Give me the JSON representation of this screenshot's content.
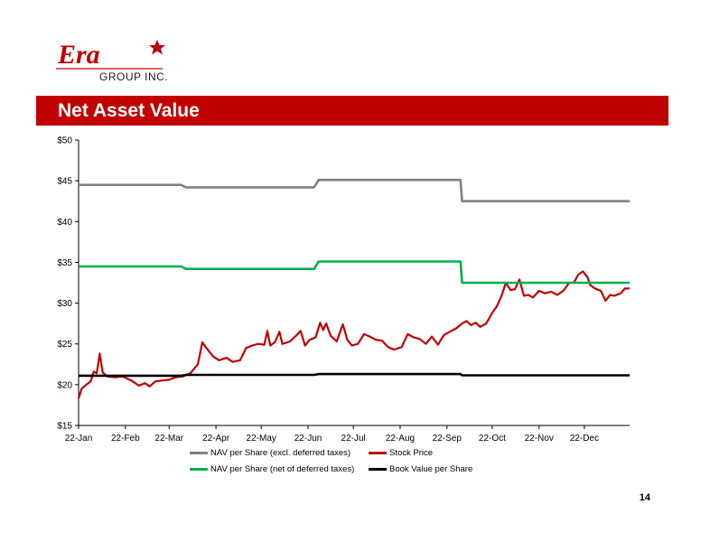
{
  "header": {
    "logo_text": "Era",
    "logo_sub": "GROUP INC.",
    "title": "Net Asset Value"
  },
  "colors": {
    "brand_red": "#c00000",
    "nav_excl": "#808080",
    "nav_net": "#00b050",
    "stock": "#c00000",
    "book": "#000000"
  },
  "page_number": "14",
  "chart_data": {
    "type": "line",
    "title": "",
    "xlabel": "",
    "ylabel": "",
    "ylim": [
      15,
      50
    ],
    "yticks": [
      15,
      20,
      25,
      30,
      35,
      40,
      45,
      50
    ],
    "ytick_labels": [
      "$15",
      "$20",
      "$25",
      "$30",
      "$35",
      "$40",
      "$45",
      "$50"
    ],
    "x_range": [
      "2012-01-01",
      "2012-12-31"
    ],
    "xticks": [
      {
        "date": "2012-01-01",
        "label": "22-Jan"
      },
      {
        "date": "2012-02-01",
        "label": "22-Feb"
      },
      {
        "date": "2012-03-01",
        "label": "22-Mar"
      },
      {
        "date": "2012-04-01",
        "label": "22-Apr"
      },
      {
        "date": "2012-05-01",
        "label": "22-May"
      },
      {
        "date": "2012-06-01",
        "label": "22-Jun"
      },
      {
        "date": "2012-07-01",
        "label": "22-Jul"
      },
      {
        "date": "2012-08-01",
        "label": "22-Aug"
      },
      {
        "date": "2012-09-01",
        "label": "22-Sep"
      },
      {
        "date": "2012-10-01",
        "label": "22-Oct"
      },
      {
        "date": "2012-11-01",
        "label": "22-Nov"
      },
      {
        "date": "2012-12-01",
        "label": "22-Dec"
      }
    ],
    "grid": false,
    "legend_position": "bottom",
    "series": [
      {
        "name": "NAV per Share (excl. deferred taxes)",
        "color": "#808080",
        "step": true,
        "points": [
          [
            "2012-01-01",
            44.5
          ],
          [
            "2012-03-09",
            44.5
          ],
          [
            "2012-03-12",
            44.2
          ],
          [
            "2012-06-05",
            44.2
          ],
          [
            "2012-06-08",
            45.1
          ],
          [
            "2012-09-10",
            45.1
          ],
          [
            "2012-09-11",
            42.5
          ],
          [
            "2012-12-31",
            42.5
          ]
        ]
      },
      {
        "name": "Stock Price",
        "color": "#c00000",
        "step": false,
        "points": [
          [
            "2012-01-01",
            18.3
          ],
          [
            "2012-01-03",
            19.5
          ],
          [
            "2012-01-06",
            20.0
          ],
          [
            "2012-01-09",
            20.4
          ],
          [
            "2012-01-11",
            21.6
          ],
          [
            "2012-01-13",
            21.4
          ],
          [
            "2012-01-15",
            23.8
          ],
          [
            "2012-01-17",
            21.5
          ],
          [
            "2012-01-20",
            21.0
          ],
          [
            "2012-01-25",
            20.9
          ],
          [
            "2012-01-30",
            21.0
          ],
          [
            "2012-02-05",
            20.5
          ],
          [
            "2012-02-10",
            19.9
          ],
          [
            "2012-02-14",
            20.2
          ],
          [
            "2012-02-17",
            19.8
          ],
          [
            "2012-02-21",
            20.4
          ],
          [
            "2012-02-25",
            20.5
          ],
          [
            "2012-03-01",
            20.6
          ],
          [
            "2012-03-05",
            20.9
          ],
          [
            "2012-03-10",
            21.0
          ],
          [
            "2012-03-15",
            21.4
          ],
          [
            "2012-03-20",
            22.5
          ],
          [
            "2012-03-23",
            25.2
          ],
          [
            "2012-03-26",
            24.4
          ],
          [
            "2012-03-30",
            23.5
          ],
          [
            "2012-04-03",
            23.0
          ],
          [
            "2012-04-08",
            23.3
          ],
          [
            "2012-04-12",
            22.8
          ],
          [
            "2012-04-17",
            23.0
          ],
          [
            "2012-04-21",
            24.5
          ],
          [
            "2012-04-25",
            24.8
          ],
          [
            "2012-04-29",
            25.0
          ],
          [
            "2012-05-03",
            24.9
          ],
          [
            "2012-05-05",
            26.6
          ],
          [
            "2012-05-07",
            24.8
          ],
          [
            "2012-05-10",
            25.2
          ],
          [
            "2012-05-13",
            26.5
          ],
          [
            "2012-05-15",
            25.0
          ],
          [
            "2012-05-20",
            25.3
          ],
          [
            "2012-05-24",
            26.0
          ],
          [
            "2012-05-27",
            26.6
          ],
          [
            "2012-05-30",
            24.8
          ],
          [
            "2012-06-02",
            25.5
          ],
          [
            "2012-06-06",
            25.8
          ],
          [
            "2012-06-09",
            27.6
          ],
          [
            "2012-06-11",
            26.7
          ],
          [
            "2012-06-13",
            27.5
          ],
          [
            "2012-06-16",
            26.0
          ],
          [
            "2012-06-20",
            25.3
          ],
          [
            "2012-06-24",
            27.4
          ],
          [
            "2012-06-27",
            25.5
          ],
          [
            "2012-06-30",
            24.8
          ],
          [
            "2012-07-04",
            25.0
          ],
          [
            "2012-07-08",
            26.2
          ],
          [
            "2012-07-12",
            25.9
          ],
          [
            "2012-07-16",
            25.5
          ],
          [
            "2012-07-20",
            25.4
          ],
          [
            "2012-07-24",
            24.6
          ],
          [
            "2012-07-28",
            24.3
          ],
          [
            "2012-08-02",
            24.6
          ],
          [
            "2012-08-06",
            26.2
          ],
          [
            "2012-08-10",
            25.8
          ],
          [
            "2012-08-14",
            25.6
          ],
          [
            "2012-08-18",
            25.0
          ],
          [
            "2012-08-22",
            25.9
          ],
          [
            "2012-08-26",
            24.9
          ],
          [
            "2012-08-30",
            26.1
          ],
          [
            "2012-09-03",
            26.5
          ],
          [
            "2012-09-07",
            26.9
          ],
          [
            "2012-09-11",
            27.5
          ],
          [
            "2012-09-14",
            27.8
          ],
          [
            "2012-09-17",
            27.3
          ],
          [
            "2012-09-20",
            27.6
          ],
          [
            "2012-09-23",
            27.1
          ],
          [
            "2012-09-27",
            27.5
          ],
          [
            "2012-10-01",
            28.8
          ],
          [
            "2012-10-04",
            29.6
          ],
          [
            "2012-10-07",
            30.8
          ],
          [
            "2012-10-10",
            32.5
          ],
          [
            "2012-10-13",
            31.6
          ],
          [
            "2012-10-16",
            31.7
          ],
          [
            "2012-10-19",
            32.9
          ],
          [
            "2012-10-22",
            30.9
          ],
          [
            "2012-10-25",
            31.0
          ],
          [
            "2012-10-28",
            30.7
          ],
          [
            "2012-11-01",
            31.5
          ],
          [
            "2012-11-05",
            31.2
          ],
          [
            "2012-11-09",
            31.4
          ],
          [
            "2012-11-13",
            31.0
          ],
          [
            "2012-11-17",
            31.5
          ],
          [
            "2012-11-21",
            32.5
          ],
          [
            "2012-11-24",
            32.5
          ],
          [
            "2012-11-27",
            33.5
          ],
          [
            "2012-11-30",
            33.9
          ],
          [
            "2012-12-03",
            33.2
          ],
          [
            "2012-12-05",
            32.2
          ],
          [
            "2012-12-08",
            31.8
          ],
          [
            "2012-12-12",
            31.5
          ],
          [
            "2012-12-15",
            30.3
          ],
          [
            "2012-12-18",
            31.0
          ],
          [
            "2012-12-21",
            30.9
          ],
          [
            "2012-12-25",
            31.2
          ],
          [
            "2012-12-28",
            31.8
          ],
          [
            "2012-12-31",
            31.8
          ]
        ]
      },
      {
        "name": "NAV per Share (net of deferred taxes)",
        "color": "#00b050",
        "step": true,
        "points": [
          [
            "2012-01-01",
            34.5
          ],
          [
            "2012-03-09",
            34.5
          ],
          [
            "2012-03-12",
            34.2
          ],
          [
            "2012-06-05",
            34.2
          ],
          [
            "2012-06-08",
            35.1
          ],
          [
            "2012-09-10",
            35.1
          ],
          [
            "2012-09-11",
            32.5
          ],
          [
            "2012-12-31",
            32.5
          ]
        ]
      },
      {
        "name": "Book Value per Share",
        "color": "#000000",
        "step": true,
        "points": [
          [
            "2012-01-01",
            21.1
          ],
          [
            "2012-03-09",
            21.1
          ],
          [
            "2012-03-12",
            21.2
          ],
          [
            "2012-06-05",
            21.2
          ],
          [
            "2012-06-08",
            21.3
          ],
          [
            "2012-09-10",
            21.3
          ],
          [
            "2012-09-11",
            21.15
          ],
          [
            "2012-12-31",
            21.15
          ]
        ]
      }
    ]
  }
}
